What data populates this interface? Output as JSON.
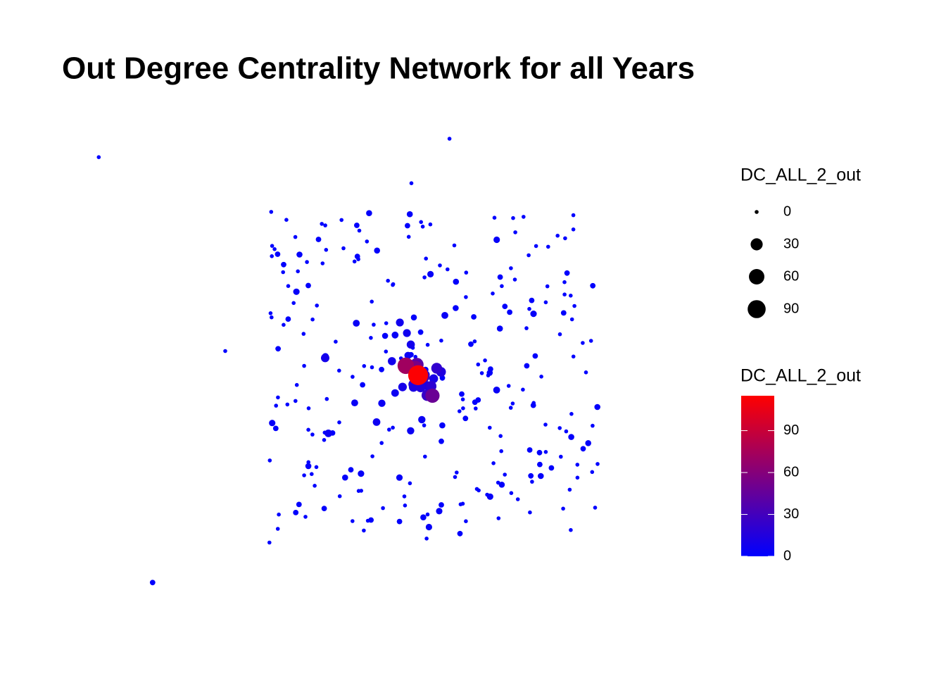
{
  "chart_data": {
    "type": "network",
    "title": "Out Degree Centrality Network for all Years",
    "size_legend": {
      "title": "DC_ALL_2_out",
      "breaks": [
        0,
        30,
        60,
        90
      ]
    },
    "color_legend": {
      "title": "DC_ALL_2_out",
      "ticks": [
        0,
        30,
        60,
        90
      ],
      "limits": [
        0,
        115
      ],
      "colors": [
        "#0000ff",
        "#ff0000"
      ]
    },
    "nodes": {
      "values": [
        114,
        72,
        55,
        48,
        40,
        35,
        30,
        28,
        25,
        22,
        20,
        18,
        16,
        15,
        14,
        13,
        12,
        12,
        11,
        10,
        10,
        10,
        9,
        8,
        8,
        7,
        7,
        6,
        6,
        6,
        5,
        5,
        5,
        5,
        4,
        4,
        4,
        4,
        4,
        4,
        3,
        3,
        3,
        3,
        3,
        3,
        3,
        3,
        3,
        3,
        2,
        2,
        2,
        2,
        2,
        2,
        2,
        2,
        2,
        2,
        2,
        2,
        2,
        2,
        2,
        2,
        2,
        2,
        2,
        2,
        1,
        1,
        1,
        1,
        1,
        1,
        1,
        1,
        1,
        1,
        1,
        1,
        1,
        1,
        1,
        1,
        1,
        1,
        1,
        1,
        1,
        1,
        1,
        1,
        1,
        1,
        1,
        1,
        1,
        1,
        1,
        1,
        1,
        1,
        1,
        1,
        1,
        1,
        1,
        1,
        1,
        1,
        1,
        1,
        1,
        1,
        1,
        1,
        1,
        1,
        0,
        0,
        0,
        0,
        0,
        0,
        0,
        0,
        0,
        0,
        0,
        0,
        0,
        0,
        0,
        0,
        0,
        0,
        0,
        0,
        0,
        0,
        0,
        0,
        0,
        0,
        0,
        0,
        0,
        0,
        0,
        0,
        0,
        0,
        0,
        0,
        0,
        0,
        0,
        0,
        0,
        0,
        0,
        0,
        0,
        0,
        0,
        0,
        0,
        0,
        0,
        0,
        0,
        0,
        0,
        0,
        0,
        0,
        0,
        0,
        0,
        0,
        0,
        0,
        0,
        0,
        0,
        0,
        0,
        0,
        0,
        0,
        0,
        0,
        0,
        0,
        0,
        0,
        0,
        0,
        0,
        0,
        0,
        0,
        0,
        0,
        0,
        0,
        0,
        0,
        0,
        0,
        0,
        0,
        0,
        0,
        0,
        0,
        0,
        0,
        0,
        0,
        0,
        0,
        0,
        0,
        0,
        0,
        0,
        0,
        0,
        0,
        0,
        0,
        0,
        0,
        0,
        0,
        0,
        0,
        0,
        0,
        0,
        0,
        0,
        0,
        0,
        0,
        0,
        0,
        0,
        0,
        0,
        0,
        0,
        0,
        0,
        0,
        0,
        0,
        0,
        0,
        0,
        0,
        0,
        0,
        0,
        0,
        0,
        0,
        0,
        0,
        0,
        0,
        0,
        0,
        0,
        0,
        0,
        0,
        0,
        0,
        0,
        0,
        0,
        0,
        0,
        0,
        0,
        0,
        0,
        0,
        0,
        0,
        0,
        0,
        0,
        0,
        0,
        0
      ]
    }
  }
}
